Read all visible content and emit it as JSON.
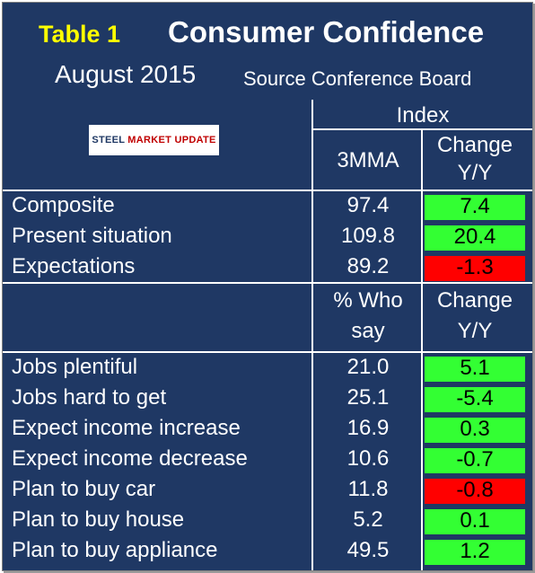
{
  "header": {
    "table_tag": "Table 1",
    "title": "Consumer Confidence",
    "date": "August 2015",
    "source": "Source Conference Board",
    "logo": {
      "word1": "STEEL",
      "word2": "MARKET UPDATE"
    },
    "index_label": "Index",
    "col1_label": "3MMA",
    "col2_label_line1": "Change",
    "col2_label_line2": "Y/Y"
  },
  "index_rows": [
    {
      "label": "Composite",
      "value": "97.4",
      "change": "7.4",
      "status": "positive"
    },
    {
      "label": "Present situation",
      "value": "109.8",
      "change": "20.4",
      "status": "positive"
    },
    {
      "label": "Expectations",
      "value": "89.2",
      "change": "-1.3",
      "status": "negative"
    }
  ],
  "survey_header": {
    "col1_line1": "% Who",
    "col1_line2": "say",
    "col2_line1": "Change",
    "col2_line2": "Y/Y"
  },
  "survey_rows": [
    {
      "label": "Jobs plentiful",
      "value": "21.0",
      "change": "5.1",
      "status": "positive"
    },
    {
      "label": "Jobs hard to get",
      "value": "25.1",
      "change": "-5.4",
      "status": "positive"
    },
    {
      "label": "Expect income increase",
      "value": "16.9",
      "change": "0.3",
      "status": "positive"
    },
    {
      "label": "Expect income decrease",
      "value": "10.6",
      "change": "-0.7",
      "status": "positive"
    },
    {
      "label": "Plan to buy car",
      "value": "11.8",
      "change": "-0.8",
      "status": "negative"
    },
    {
      "label": "Plan to buy house",
      "value": "5.2",
      "change": "0.1",
      "status": "positive"
    },
    {
      "label": "Plan to buy appliance",
      "value": "49.5",
      "change": "1.2",
      "status": "positive"
    }
  ],
  "colors": {
    "background": "#1f3864",
    "positive": "#33ff33",
    "negative": "#ff0000",
    "tag": "#ffff00"
  }
}
